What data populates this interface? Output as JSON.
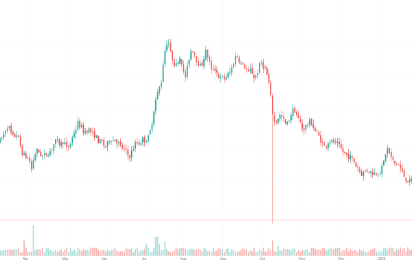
{
  "chart_data": {
    "type": "candlestick",
    "title": "",
    "xlabel": "",
    "ylabel": "",
    "x_ticks": [
      "Apr",
      "May",
      "Jun",
      "Jul",
      "Aug",
      "Sep",
      "Oct",
      "Nov",
      "Dec",
      "2026"
    ],
    "grid": true,
    "colors": {
      "up": "#26a69a",
      "down": "#ef5350",
      "volume_up": "#a8ddd7",
      "volume_down": "#f7b3b1",
      "grid": "#f0f3fa",
      "text": "#787b86"
    },
    "price_range": [
      0,
      100
    ],
    "price_path": [
      [
        0,
        60
      ],
      [
        4,
        62
      ],
      [
        8,
        68
      ],
      [
        12,
        75
      ],
      [
        15,
        78
      ],
      [
        18,
        70
      ],
      [
        22,
        65
      ],
      [
        27,
        68
      ],
      [
        30,
        63
      ],
      [
        34,
        50
      ],
      [
        38,
        46
      ],
      [
        42,
        44
      ],
      [
        46,
        40
      ],
      [
        49,
        30
      ],
      [
        52,
        45
      ],
      [
        55,
        50
      ],
      [
        58,
        51
      ],
      [
        62,
        47
      ],
      [
        66,
        45
      ],
      [
        70,
        47
      ],
      [
        74,
        49
      ],
      [
        78,
        53
      ],
      [
        81,
        58
      ],
      [
        85,
        62
      ],
      [
        88,
        59
      ],
      [
        92,
        58
      ],
      [
        96,
        63
      ],
      [
        99,
        52
      ],
      [
        103,
        55
      ],
      [
        107,
        62
      ],
      [
        110,
        70
      ],
      [
        113,
        73
      ],
      [
        116,
        80
      ],
      [
        119,
        77
      ],
      [
        122,
        75
      ],
      [
        125,
        70
      ],
      [
        128,
        72
      ],
      [
        131,
        74
      ],
      [
        134,
        72
      ],
      [
        137,
        68
      ],
      [
        141,
        67
      ],
      [
        144,
        64
      ],
      [
        147,
        59
      ],
      [
        150,
        62
      ],
      [
        153,
        57
      ],
      [
        157,
        55
      ],
      [
        160,
        59
      ],
      [
        163,
        65
      ],
      [
        167,
        61
      ],
      [
        170,
        64
      ],
      [
        173,
        61
      ],
      [
        177,
        56
      ],
      [
        180,
        55
      ],
      [
        183,
        52
      ],
      [
        186,
        50
      ],
      [
        189,
        46
      ],
      [
        192,
        46
      ],
      [
        195,
        51
      ],
      [
        198,
        55
      ],
      [
        201,
        60
      ],
      [
        204,
        58
      ],
      [
        207,
        60
      ],
      [
        211,
        63
      ],
      [
        215,
        62
      ],
      [
        219,
        65
      ],
      [
        222,
        73
      ],
      [
        225,
        85
      ],
      [
        228,
        100
      ],
      [
        231,
        108
      ],
      [
        234,
        115
      ],
      [
        238,
        125
      ],
      [
        241,
        148
      ],
      [
        244,
        160
      ],
      [
        247,
        168
      ],
      [
        249,
        162
      ],
      [
        251,
        153
      ],
      [
        253,
        150
      ],
      [
        256,
        142
      ],
      [
        259,
        140
      ],
      [
        262,
        146
      ],
      [
        265,
        149
      ],
      [
        268,
        143
      ],
      [
        270,
        132
      ],
      [
        273,
        128
      ],
      [
        276,
        140
      ],
      [
        279,
        152
      ],
      [
        282,
        158
      ],
      [
        285,
        155
      ],
      [
        288,
        148
      ],
      [
        291,
        144
      ],
      [
        293,
        139
      ],
      [
        296,
        140
      ],
      [
        299,
        147
      ],
      [
        302,
        155
      ],
      [
        305,
        150
      ],
      [
        308,
        143
      ],
      [
        311,
        133
      ],
      [
        314,
        139
      ],
      [
        317,
        136
      ],
      [
        320,
        130
      ],
      [
        323,
        126
      ],
      [
        326,
        128
      ],
      [
        329,
        126
      ],
      [
        332,
        128
      ],
      [
        335,
        131
      ],
      [
        338,
        133
      ],
      [
        341,
        139
      ],
      [
        344,
        147
      ],
      [
        347,
        151
      ],
      [
        350,
        148
      ],
      [
        353,
        143
      ],
      [
        356,
        140
      ],
      [
        359,
        139
      ],
      [
        362,
        135
      ],
      [
        365,
        131
      ],
      [
        368,
        137
      ],
      [
        371,
        130
      ],
      [
        374,
        127
      ],
      [
        377,
        132
      ],
      [
        380,
        139
      ],
      [
        383,
        144
      ],
      [
        386,
        140
      ],
      [
        389,
        136
      ],
      [
        392,
        129
      ],
      [
        395,
        118
      ],
      [
        398,
        100
      ],
      [
        401,
        82
      ],
      [
        404,
        80
      ],
      [
        407,
        85
      ],
      [
        410,
        88
      ],
      [
        413,
        86
      ],
      [
        416,
        82
      ],
      [
        419,
        78
      ],
      [
        422,
        80
      ],
      [
        425,
        86
      ],
      [
        428,
        92
      ],
      [
        431,
        95
      ],
      [
        434,
        90
      ],
      [
        437,
        84
      ],
      [
        440,
        80
      ],
      [
        443,
        74
      ],
      [
        446,
        75
      ],
      [
        449,
        77
      ],
      [
        452,
        80
      ],
      [
        455,
        82
      ],
      [
        458,
        78
      ],
      [
        461,
        72
      ],
      [
        464,
        70
      ],
      [
        467,
        66
      ],
      [
        470,
        62
      ],
      [
        473,
        57
      ],
      [
        476,
        55
      ],
      [
        479,
        58
      ],
      [
        482,
        62
      ],
      [
        485,
        60
      ],
      [
        488,
        61
      ],
      [
        491,
        57
      ],
      [
        494,
        58
      ],
      [
        497,
        55
      ],
      [
        500,
        52
      ],
      [
        503,
        49
      ],
      [
        506,
        47
      ],
      [
        509,
        46
      ],
      [
        512,
        44
      ],
      [
        515,
        43
      ],
      [
        518,
        40
      ],
      [
        521,
        35
      ],
      [
        524,
        33
      ],
      [
        527,
        30
      ],
      [
        530,
        26
      ],
      [
        533,
        29
      ],
      [
        536,
        31
      ],
      [
        539,
        30
      ],
      [
        542,
        29
      ],
      [
        545,
        28
      ],
      [
        548,
        27
      ],
      [
        551,
        28
      ],
      [
        554,
        29
      ],
      [
        557,
        30
      ],
      [
        560,
        34
      ],
      [
        563,
        44
      ],
      [
        566,
        54
      ],
      [
        569,
        50
      ],
      [
        572,
        44
      ],
      [
        575,
        40
      ],
      [
        578,
        37
      ],
      [
        581,
        38
      ],
      [
        584,
        35
      ],
      [
        587,
        30
      ],
      [
        590,
        26
      ],
      [
        593,
        22
      ],
      [
        596,
        20
      ],
      [
        600,
        18
      ]
    ],
    "volume_range": [
      0,
      100
    ],
    "volume_spikes": [
      [
        0,
        15
      ],
      [
        24,
        20
      ],
      [
        36,
        45
      ],
      [
        48,
        90
      ],
      [
        67,
        18
      ],
      [
        102,
        20
      ],
      [
        142,
        18
      ],
      [
        213,
        35
      ],
      [
        228,
        55
      ],
      [
        233,
        35
      ],
      [
        240,
        42
      ],
      [
        300,
        18
      ],
      [
        398,
        45
      ],
      [
        404,
        28
      ],
      [
        470,
        22
      ],
      [
        492,
        22
      ],
      [
        527,
        14
      ],
      [
        560,
        16
      ],
      [
        587,
        18
      ],
      [
        593,
        14
      ]
    ],
    "spike_day": 398,
    "spike_low": -280
  }
}
